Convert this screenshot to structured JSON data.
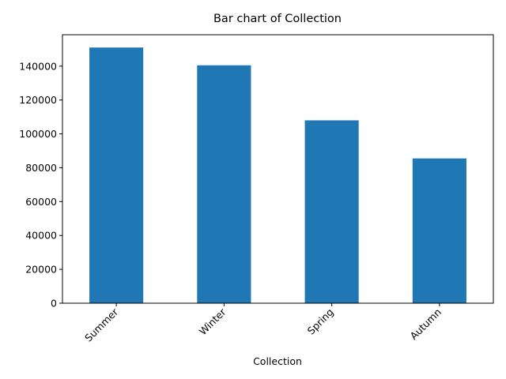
{
  "chart_data": {
    "type": "bar",
    "title": "Bar chart of Collection",
    "xlabel": "Collection",
    "ylabel": "",
    "categories": [
      "Summer",
      "Winter",
      "Spring",
      "Autumn"
    ],
    "values": [
      151000,
      140500,
      108000,
      85500
    ],
    "ylim": [
      0,
      158550
    ],
    "yticks": [
      0,
      20000,
      40000,
      60000,
      80000,
      100000,
      120000,
      140000
    ],
    "grid": false,
    "legend": "none",
    "bar_color": "#1f77b4"
  }
}
